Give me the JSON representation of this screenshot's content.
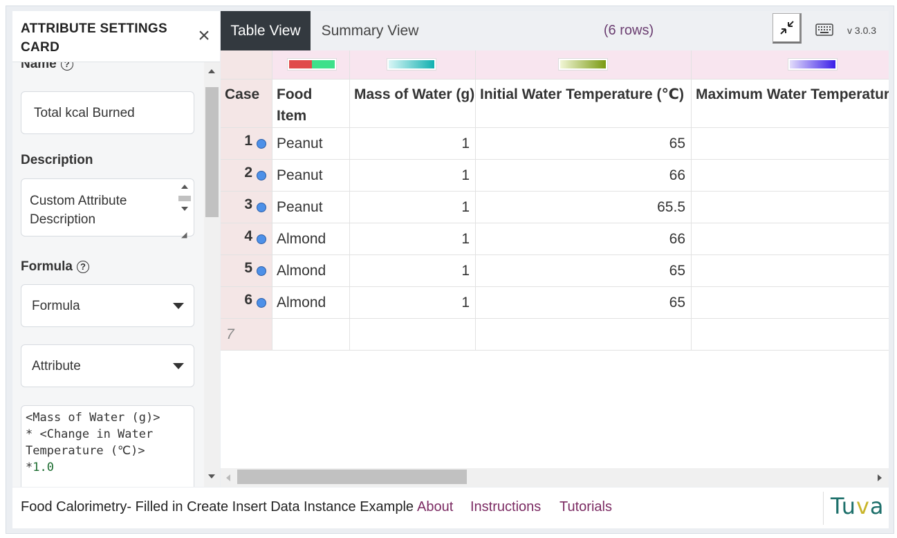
{
  "settings_card": {
    "title": "ATTRIBUTE SETTINGS CARD",
    "close_icon": "close-icon",
    "name_label": "Name",
    "name_value": "Total kcal Burned",
    "description_label": "Description",
    "description_value": "Custom Attribute Description",
    "formula_label": "Formula",
    "formula_select": "Formula",
    "attribute_select": "Attribute",
    "formula_line1": "<Mass of Water (g)>",
    "formula_line2": "* <Change in Water",
    "formula_line3": "Temperature (℃)>",
    "formula_line4_op": "*",
    "formula_line4_num": "1.0"
  },
  "toolbar": {
    "tabs": [
      {
        "label": "Table View",
        "active": true
      },
      {
        "label": "Summary View",
        "active": false
      }
    ],
    "row_count": "(6 rows)",
    "collapse_icon": "collapse-icon",
    "keyboard_icon": "keyboard-icon",
    "version": "v 3.0.3"
  },
  "table": {
    "columns": [
      {
        "label": "Case",
        "swatch": null
      },
      {
        "label": "Food Item",
        "swatch": [
          "#e04a4a",
          "#3de08a"
        ]
      },
      {
        "label": "Mass of Water (g)",
        "swatch": [
          "#d8f6f6",
          "#11b0b0"
        ]
      },
      {
        "label": "Initial Water Temperature (℃)",
        "swatch": [
          "#f1f6d5",
          "#7a9a12"
        ]
      },
      {
        "label": "Maximum Water Temperatur",
        "swatch": [
          "#e2dcfb",
          "#3a1ee8"
        ]
      }
    ],
    "rows": [
      {
        "case": "1",
        "food": "Peanut",
        "mass": "1",
        "initial": "65",
        "max": ""
      },
      {
        "case": "2",
        "food": "Peanut",
        "mass": "1",
        "initial": "66",
        "max": ""
      },
      {
        "case": "3",
        "food": "Peanut",
        "mass": "1",
        "initial": "65.5",
        "max": ""
      },
      {
        "case": "4",
        "food": "Almond",
        "mass": "1",
        "initial": "66",
        "max": ""
      },
      {
        "case": "5",
        "food": "Almond",
        "mass": "1",
        "initial": "65",
        "max": ""
      },
      {
        "case": "6",
        "food": "Almond",
        "mass": "1",
        "initial": "65",
        "max": ""
      }
    ],
    "new_row_label": "7",
    "case_dot_color": "#4d90e8"
  },
  "footer": {
    "title": "Food Calorimetry- Filled in Create Insert Data Instance Example",
    "links": [
      "About",
      "Instructions",
      "Tutorials"
    ],
    "logo_prefix": "Tu",
    "logo_v": "v",
    "logo_suffix": "a",
    "link_color": "#7b2a62"
  },
  "colors": {
    "active_tab": "#33393f",
    "swatch_row": "#f8e5ef",
    "index_col": "#f4e6e6"
  }
}
